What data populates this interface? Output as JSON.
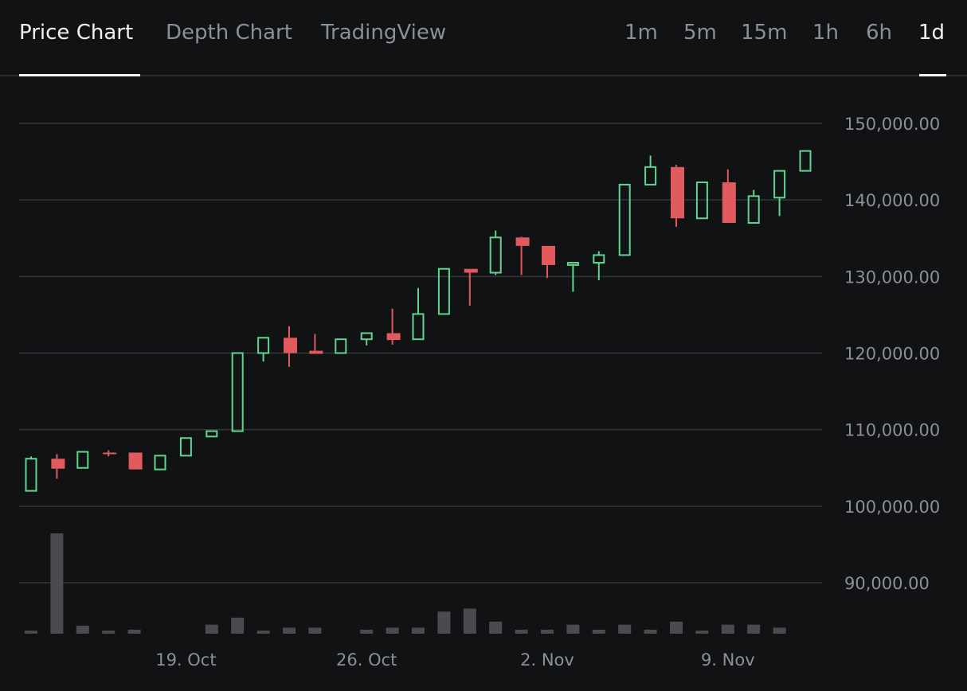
{
  "tabs": [
    {
      "label": "Price Chart",
      "active": true
    },
    {
      "label": "Depth Chart",
      "active": false
    },
    {
      "label": "TradingView",
      "active": false
    }
  ],
  "timeframes": [
    {
      "label": "1m",
      "active": false
    },
    {
      "label": "5m",
      "active": false
    },
    {
      "label": "15m",
      "active": false
    },
    {
      "label": "1h",
      "active": false
    },
    {
      "label": "6h",
      "active": false
    },
    {
      "label": "1d",
      "active": true
    }
  ],
  "colors": {
    "up": "#5fd68f",
    "down": "#e05a5e",
    "grid": "#34363a",
    "volume": "#4a4b4e",
    "background": "#111214"
  },
  "chart_data": {
    "type": "candlestick",
    "y_tick_labels": [
      "150,000.00",
      "140,000.00",
      "130,000.00",
      "120,000.00",
      "110,000.00",
      "100,000.00",
      "90,000.00"
    ],
    "y_ticks": [
      150000,
      140000,
      130000,
      120000,
      110000,
      100000,
      90000
    ],
    "x_tick_labels": [
      "19. Oct",
      "26. Oct",
      "2. Nov",
      "9. Nov"
    ],
    "x_tick_index": [
      6,
      13,
      20,
      27
    ],
    "ylim": [
      83500,
      156500
    ],
    "grid": true,
    "candles": [
      {
        "o": 102000,
        "h": 106500,
        "l": 102000,
        "c": 106200
      },
      {
        "o": 106200,
        "h": 106800,
        "l": 103600,
        "c": 104900
      },
      {
        "o": 105000,
        "h": 107200,
        "l": 105000,
        "c": 107100
      },
      {
        "o": 107000,
        "h": 107300,
        "l": 106500,
        "c": 106800
      },
      {
        "o": 107000,
        "h": 107000,
        "l": 104800,
        "c": 104800
      },
      {
        "o": 104800,
        "h": 106700,
        "l": 104800,
        "c": 106600
      },
      {
        "o": 106600,
        "h": 108900,
        "l": 106600,
        "c": 108900
      },
      {
        "o": 109100,
        "h": 109800,
        "l": 109100,
        "c": 109800
      },
      {
        "o": 109800,
        "h": 120000,
        "l": 109800,
        "c": 120000
      },
      {
        "o": 120000,
        "h": 122000,
        "l": 118900,
        "c": 122000
      },
      {
        "o": 122000,
        "h": 123500,
        "l": 118200,
        "c": 120000
      },
      {
        "o": 120300,
        "h": 122500,
        "l": 120000,
        "c": 119900
      },
      {
        "o": 120000,
        "h": 121800,
        "l": 120000,
        "c": 121800
      },
      {
        "o": 121800,
        "h": 122600,
        "l": 121000,
        "c": 122600
      },
      {
        "o": 122600,
        "h": 125800,
        "l": 121100,
        "c": 121700
      },
      {
        "o": 121800,
        "h": 128500,
        "l": 121800,
        "c": 125100
      },
      {
        "o": 125100,
        "h": 131000,
        "l": 125100,
        "c": 131000
      },
      {
        "o": 131000,
        "h": 131000,
        "l": 126200,
        "c": 130500
      },
      {
        "o": 130500,
        "h": 136000,
        "l": 130200,
        "c": 135100
      },
      {
        "o": 135100,
        "h": 135200,
        "l": 130200,
        "c": 134000
      },
      {
        "o": 134000,
        "h": 134000,
        "l": 129800,
        "c": 131500
      },
      {
        "o": 131500,
        "h": 131800,
        "l": 128000,
        "c": 131800
      },
      {
        "o": 131800,
        "h": 133300,
        "l": 129500,
        "c": 132800
      },
      {
        "o": 132800,
        "h": 142000,
        "l": 132800,
        "c": 142000
      },
      {
        "o": 142000,
        "h": 145800,
        "l": 142000,
        "c": 144300
      },
      {
        "o": 144300,
        "h": 144600,
        "l": 136500,
        "c": 137600
      },
      {
        "o": 137600,
        "h": 142300,
        "l": 137600,
        "c": 142300
      },
      {
        "o": 142300,
        "h": 144000,
        "l": 137000,
        "c": 137000
      },
      {
        "o": 137000,
        "h": 141300,
        "l": 137000,
        "c": 140500
      },
      {
        "o": 140300,
        "h": 143800,
        "l": 137900,
        "c": 143800
      },
      {
        "o": 143800,
        "h": 146400,
        "l": 143800,
        "c": 146400
      }
    ],
    "volume": [
      3,
      100,
      8,
      3,
      4,
      0,
      0,
      9,
      16,
      3,
      6,
      6,
      0,
      4,
      6,
      6,
      22,
      25,
      12,
      4,
      4,
      9,
      4,
      9,
      4,
      12,
      3,
      9,
      9,
      6,
      0
    ]
  }
}
